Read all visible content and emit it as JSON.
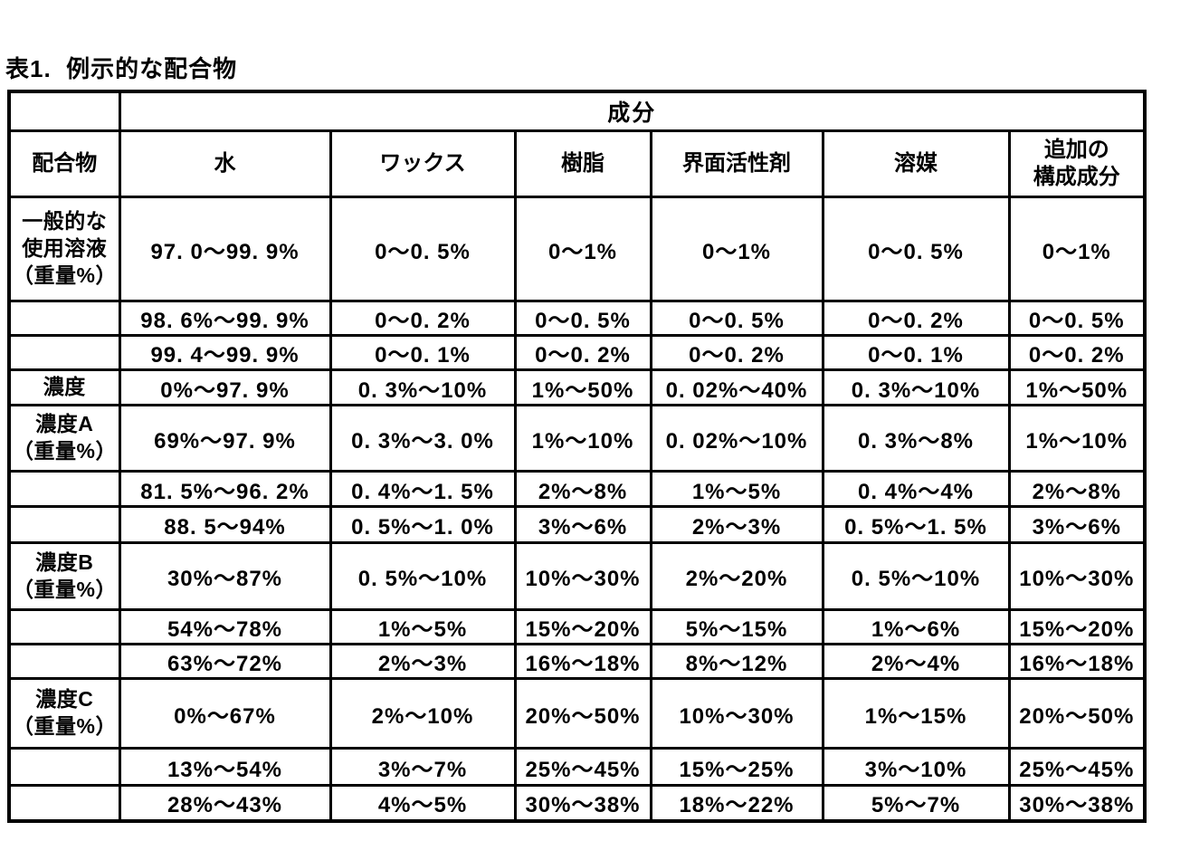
{
  "page_title": "表1.  例示的な配合物",
  "table": {
    "group_header": "成分",
    "columns": [
      "配合物",
      "水",
      "ワックス",
      "樹脂",
      "界面活性剤",
      "溶媒",
      "追加の\n構成成分"
    ],
    "rows": [
      {
        "label": "一般的な\n使用溶液\n（重量%）",
        "values": [
          "97. 0～99. 9%",
          "0～0. 5%",
          "0～1%",
          "0～1%",
          "0～0. 5%",
          "0～1%"
        ]
      },
      {
        "label": "",
        "values": [
          "98. 6%～99. 9%",
          "0～0. 2%",
          "0～0. 5%",
          "0～0. 5%",
          "0～0. 2%",
          "0～0. 5%"
        ]
      },
      {
        "label": "",
        "values": [
          "99. 4～99. 9%",
          "0～0. 1%",
          "0～0. 2%",
          "0～0. 2%",
          "0～0. 1%",
          "0～0. 2%"
        ]
      },
      {
        "label": "濃度",
        "values": [
          "0%～97. 9%",
          "0. 3%～10%",
          "1%～50%",
          "0. 02%～40%",
          "0. 3%～10%",
          "1%～50%"
        ]
      },
      {
        "label": "濃度A\n（重量%）",
        "values": [
          "69%～97. 9%",
          "0. 3%～3. 0%",
          "1%～10%",
          "0. 02%～10%",
          "0. 3%～8%",
          "1%～10%"
        ]
      },
      {
        "label": "",
        "values": [
          "81. 5%～96. 2%",
          "0. 4%～1. 5%",
          "2%～8%",
          "1%～5%",
          "0. 4%～4%",
          "2%～8%"
        ]
      },
      {
        "label": "",
        "values": [
          "88. 5～94%",
          "0. 5%～1. 0%",
          "3%～6%",
          "2%～3%",
          "0. 5%～1. 5%",
          "3%～6%"
        ]
      },
      {
        "label": "濃度B\n（重量%）",
        "values": [
          "30%～87%",
          "0. 5%～10%",
          "10%～30%",
          "2%～20%",
          "0. 5%～10%",
          "10%～30%"
        ]
      },
      {
        "label": "",
        "values": [
          "54%～78%",
          "1%～5%",
          "15%～20%",
          "5%～15%",
          "1%～6%",
          "15%～20%"
        ]
      },
      {
        "label": "",
        "values": [
          "63%～72%",
          "2%～3%",
          "16%～18%",
          "8%～12%",
          "2%～4%",
          "16%～18%"
        ]
      },
      {
        "label": "濃度C\n（重量%）",
        "values": [
          "0%～67%",
          "2%～10%",
          "20%～50%",
          "10%～30%",
          "1%～15%",
          "20%～50%"
        ]
      },
      {
        "label": "",
        "values": [
          "13%～54%",
          "3%～7%",
          "25%～45%",
          "15%～25%",
          "3%～10%",
          "25%～45%"
        ]
      },
      {
        "label": "",
        "values": [
          "28%～43%",
          "4%～5%",
          "30%～38%",
          "18%～22%",
          "5%～7%",
          "30%～38%"
        ]
      }
    ]
  }
}
